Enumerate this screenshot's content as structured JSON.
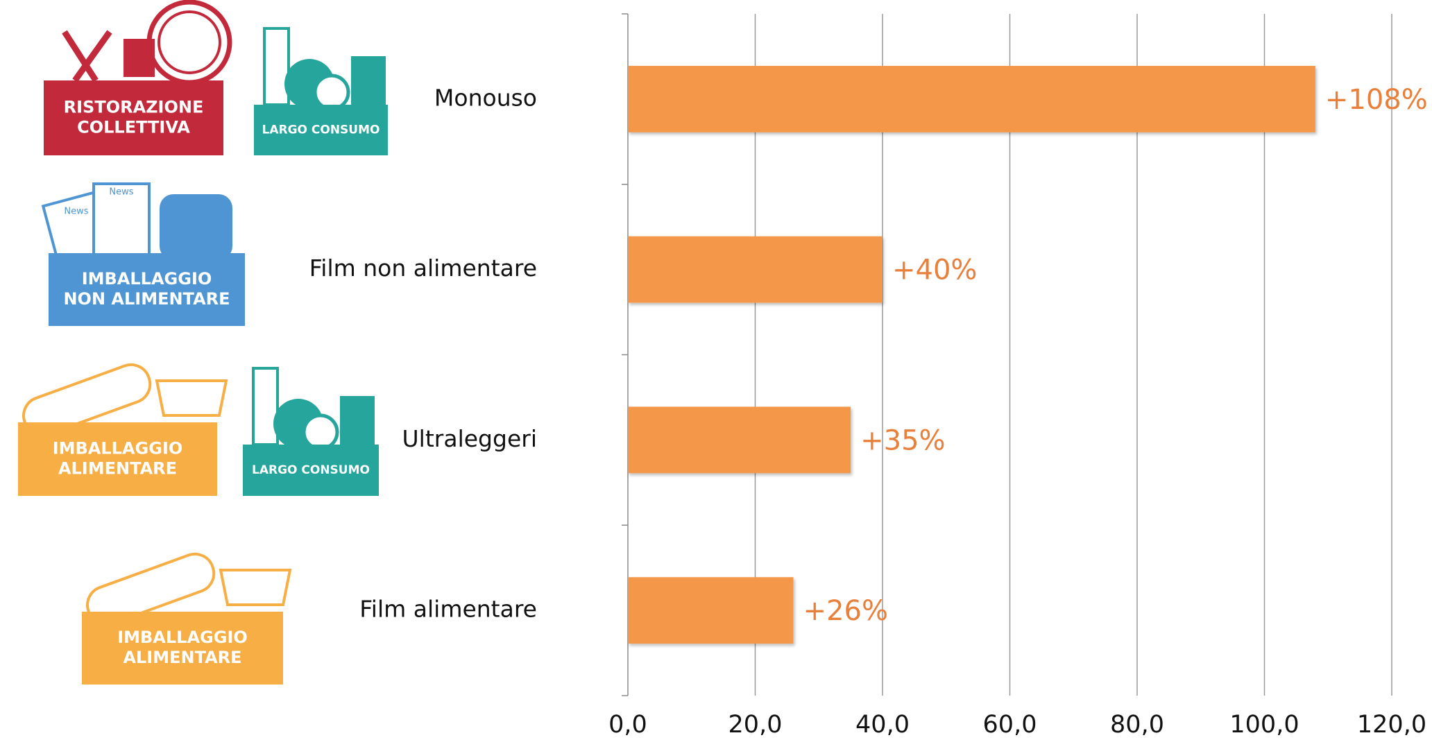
{
  "chart_data": {
    "type": "bar",
    "orientation": "horizontal",
    "categories": [
      "Monouso",
      "Film non alimentare",
      "Ultraleggeri",
      "Film alimentare"
    ],
    "values": [
      108,
      40,
      35,
      26
    ],
    "value_labels": [
      "+108%",
      "+40%",
      "+35%",
      "+26%"
    ],
    "color": "#f5974a",
    "label_color": "#e8803c",
    "xlim": [
      0,
      120
    ],
    "xticks": [
      {
        "value": 0,
        "label": "0,0"
      },
      {
        "value": 20,
        "label": "20,0"
      },
      {
        "value": 40,
        "label": "40,0"
      },
      {
        "value": 60,
        "label": "60,0"
      },
      {
        "value": 80,
        "label": "80,0"
      },
      {
        "value": 100,
        "label": "100,0"
      },
      {
        "value": 120,
        "label": "120,0"
      }
    ],
    "grid": true
  },
  "icons": [
    {
      "lines": [
        "RISTORAZIONE",
        "COLLETTIVA"
      ],
      "color": "#c22a3c"
    },
    {
      "lines": [
        "LARGO CONSUMO"
      ],
      "color": "#26a59c"
    },
    {
      "lines": [
        "IMBALLAGGIO",
        "NON ALIMENTARE"
      ],
      "color": "#4f95d3",
      "news": [
        "News",
        "News"
      ]
    },
    {
      "lines": [
        "IMBALLAGGIO",
        "ALIMENTARE"
      ],
      "color": "#f6ae45"
    },
    {
      "lines": [
        "LARGO CONSUMO"
      ],
      "color": "#26a59c"
    },
    {
      "lines": [
        "IMBALLAGGIO",
        "ALIMENTARE"
      ],
      "color": "#f6ae45"
    }
  ]
}
